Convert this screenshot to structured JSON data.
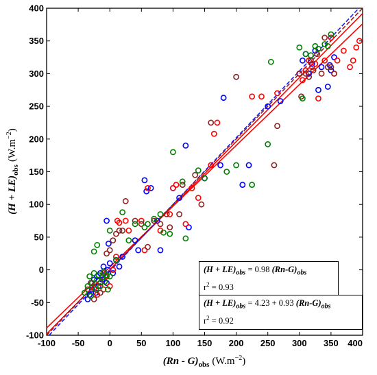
{
  "chart_data": {
    "type": "scatter",
    "xlim": [
      -100,
      400
    ],
    "ylim": [
      -100,
      400
    ],
    "x_ticks": [
      -100,
      -50,
      0,
      50,
      100,
      150,
      200,
      250,
      300,
      350,
      400
    ],
    "y_ticks": [
      -100,
      -50,
      0,
      50,
      100,
      150,
      200,
      250,
      300,
      350,
      400
    ],
    "xlabel": {
      "main": "(Rn - G)",
      "sub": "obs",
      "unit": "(W.m",
      "exp": "−2",
      "close": ")"
    },
    "ylabel": {
      "main": "(H + LE)",
      "sub": "obs",
      "unit": "(W.m",
      "exp": "−2",
      "close": ")"
    },
    "grid": false,
    "legend_placement": "bottom-right",
    "equations": [
      {
        "lhs": "(H + LE)",
        "lhs_sub": "obs",
        "rhs_plain": " = 0.98 ",
        "rhs_var": "(Rn-G)",
        "rhs_sub": "obs",
        "r2_label": "r",
        "r2_exp": "2",
        "r2_value": " = 0.93"
      },
      {
        "lhs": "(H + LE)",
        "lhs_sub": "obs",
        "rhs_plain": " = 4.23 + 0.93 ",
        "rhs_var": "(Rn-G)",
        "rhs_sub": "obs",
        "r2_label": "r",
        "r2_exp": "2",
        "r2_value": " = 0.92"
      }
    ],
    "fit_lines": [
      {
        "slope": 0.98,
        "intercept": 0,
        "color": "#ff0000",
        "dash": "none"
      },
      {
        "slope": 0.93,
        "intercept": 4.23,
        "color": "#ff0000",
        "dash": "none"
      },
      {
        "slope": 1.02,
        "intercept": -2,
        "color": "#1a1aff",
        "dash": "6,3"
      },
      {
        "slope": 1.0,
        "intercept": 0,
        "color": "#8b2323",
        "dash": "6,3"
      }
    ],
    "series": [
      {
        "color": "#0000ff",
        "points": [
          [
            -35,
            -45
          ],
          [
            -32,
            -38
          ],
          [
            -30,
            -20
          ],
          [
            -28,
            -30
          ],
          [
            -25,
            -15
          ],
          [
            -22,
            -35
          ],
          [
            -20,
            -10
          ],
          [
            -18,
            -25
          ],
          [
            -15,
            -5
          ],
          [
            -12,
            -15
          ],
          [
            -10,
            5
          ],
          [
            -5,
            -20
          ],
          [
            -3,
            0
          ],
          [
            0,
            10
          ],
          [
            5,
            -5
          ],
          [
            10,
            15
          ],
          [
            15,
            5
          ],
          [
            -2,
            40
          ],
          [
            -5,
            75
          ],
          [
            20,
            20
          ],
          [
            40,
            45
          ],
          [
            45,
            30
          ],
          [
            55,
            137
          ],
          [
            58,
            120
          ],
          [
            65,
            125
          ],
          [
            75,
            75
          ],
          [
            80,
            30
          ],
          [
            100,
            125
          ],
          [
            110,
            110
          ],
          [
            120,
            190
          ],
          [
            125,
            65
          ],
          [
            150,
            140
          ],
          [
            175,
            160
          ],
          [
            180,
            263
          ],
          [
            210,
            130
          ],
          [
            220,
            160
          ],
          [
            250,
            250
          ],
          [
            270,
            258
          ],
          [
            300,
            300
          ],
          [
            305,
            320
          ],
          [
            310,
            330
          ],
          [
            315,
            300
          ],
          [
            320,
            315
          ],
          [
            325,
            335
          ],
          [
            330,
            275
          ],
          [
            335,
            310
          ],
          [
            345,
            280
          ],
          [
            350,
            305
          ],
          [
            355,
            325
          ],
          [
            348,
            313
          ]
        ]
      },
      {
        "color": "#ff0000",
        "points": [
          [
            -30,
            -40
          ],
          [
            -25,
            -28
          ],
          [
            -20,
            -38
          ],
          [
            -15,
            -20
          ],
          [
            -10,
            -30
          ],
          [
            -5,
            -10
          ],
          [
            0,
            -25
          ],
          [
            5,
            0
          ],
          [
            10,
            20
          ],
          [
            12,
            75
          ],
          [
            15,
            72
          ],
          [
            25,
            75
          ],
          [
            30,
            60
          ],
          [
            50,
            75
          ],
          [
            55,
            30
          ],
          [
            60,
            125
          ],
          [
            80,
            60
          ],
          [
            95,
            85
          ],
          [
            100,
            125
          ],
          [
            105,
            130
          ],
          [
            120,
            70
          ],
          [
            130,
            125
          ],
          [
            140,
            110
          ],
          [
            160,
            160
          ],
          [
            165,
            208
          ],
          [
            170,
            225
          ],
          [
            225,
            265
          ],
          [
            240,
            265
          ],
          [
            265,
            270
          ],
          [
            300,
            300
          ],
          [
            305,
            290
          ],
          [
            310,
            305
          ],
          [
            315,
            320
          ],
          [
            320,
            310
          ],
          [
            325,
            315
          ],
          [
            330,
            262
          ],
          [
            340,
            320
          ],
          [
            350,
            355
          ],
          [
            355,
            300
          ],
          [
            360,
            320
          ],
          [
            370,
            335
          ],
          [
            380,
            310
          ],
          [
            385,
            320
          ],
          [
            390,
            340
          ],
          [
            395,
            350
          ]
        ]
      },
      {
        "color": "#8b2323",
        "points": [
          [
            -35,
            -30
          ],
          [
            -30,
            -20
          ],
          [
            -25,
            -45
          ],
          [
            -20,
            -15
          ],
          [
            -15,
            -35
          ],
          [
            -10,
            -5
          ],
          [
            -5,
            25
          ],
          [
            0,
            30
          ],
          [
            5,
            45
          ],
          [
            10,
            55
          ],
          [
            15,
            60
          ],
          [
            20,
            60
          ],
          [
            25,
            105
          ],
          [
            40,
            75
          ],
          [
            50,
            70
          ],
          [
            60,
            35
          ],
          [
            70,
            75
          ],
          [
            80,
            70
          ],
          [
            90,
            85
          ],
          [
            95,
            65
          ],
          [
            110,
            85
          ],
          [
            115,
            130
          ],
          [
            135,
            145
          ],
          [
            145,
            100
          ],
          [
            160,
            225
          ],
          [
            200,
            295
          ],
          [
            260,
            160
          ],
          [
            265,
            220
          ],
          [
            300,
            300
          ],
          [
            303,
            265
          ],
          [
            310,
            300
          ],
          [
            315,
            295
          ],
          [
            318,
            320
          ],
          [
            322,
            305
          ],
          [
            328,
            330
          ],
          [
            335,
            300
          ],
          [
            340,
            355
          ],
          [
            345,
            310
          ],
          [
            350,
            310
          ],
          [
            355,
            300
          ]
        ]
      },
      {
        "color": "#008000",
        "points": [
          [
            -40,
            -35
          ],
          [
            -35,
            -25
          ],
          [
            -32,
            -10
          ],
          [
            -30,
            -40
          ],
          [
            -28,
            -20
          ],
          [
            -25,
            -5
          ],
          [
            -22,
            -30
          ],
          [
            -20,
            -15
          ],
          [
            -18,
            -8
          ],
          [
            -15,
            -25
          ],
          [
            -12,
            -12
          ],
          [
            -10,
            -3
          ],
          [
            -8,
            -18
          ],
          [
            -5,
            -8
          ],
          [
            -3,
            -30
          ],
          [
            0,
            -10
          ],
          [
            -25,
            28
          ],
          [
            -20,
            38
          ],
          [
            0,
            60
          ],
          [
            10,
            15
          ],
          [
            20,
            88
          ],
          [
            30,
            45
          ],
          [
            40,
            70
          ],
          [
            55,
            65
          ],
          [
            60,
            70
          ],
          [
            70,
            78
          ],
          [
            80,
            85
          ],
          [
            85,
            57
          ],
          [
            95,
            55
          ],
          [
            100,
            180
          ],
          [
            115,
            135
          ],
          [
            120,
            48
          ],
          [
            140,
            152
          ],
          [
            150,
            140
          ],
          [
            185,
            150
          ],
          [
            200,
            160
          ],
          [
            225,
            130
          ],
          [
            250,
            192
          ],
          [
            255,
            318
          ],
          [
            300,
            340
          ],
          [
            305,
            262
          ],
          [
            310,
            330
          ],
          [
            318,
            328
          ],
          [
            325,
            342
          ],
          [
            330,
            338
          ],
          [
            340,
            345
          ],
          [
            345,
            342
          ],
          [
            350,
            360
          ]
        ]
      }
    ]
  }
}
